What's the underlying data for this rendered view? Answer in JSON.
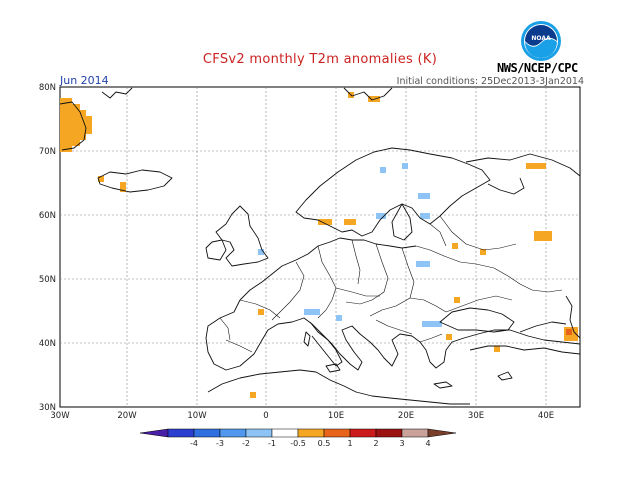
{
  "title": "CFSv2 monthly T2m anomalies (K)",
  "subtitle": "Jun 2014",
  "initial_conditions": "Initial conditions: 25Dec2013-3Jan2014",
  "org": "NWS/NCEP/CPC",
  "logo_text": "NOAA",
  "axes": {
    "lon_ticks": [
      "30W",
      "20W",
      "10W",
      "0",
      "10E",
      "20E",
      "30E",
      "40E"
    ],
    "lat_ticks": [
      "80N",
      "70N",
      "60N",
      "50N",
      "40N",
      "30N"
    ]
  },
  "colorbar": {
    "labels": [
      "-4",
      "-3",
      "-2",
      "-1",
      "-0.5",
      "0.5",
      "1",
      "2",
      "3",
      "4"
    ],
    "colors": [
      "#4a1fa8",
      "#2a3fd0",
      "#2f6fe0",
      "#4f98ee",
      "#8ec4f5",
      "#ffffff",
      "#f5a623",
      "#e8641b",
      "#cc1b1b",
      "#9b1212",
      "#c9a29a",
      "#7a3f2a"
    ]
  },
  "colors": {
    "title": "#cc2222",
    "subtitle": "#2244aa",
    "warm": "#f5a623",
    "cool": "#8ec4f5"
  }
}
